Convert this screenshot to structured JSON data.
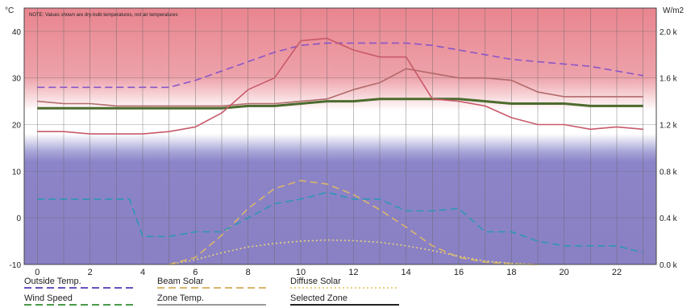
{
  "chart_data": {
    "type": "line",
    "note": "NOTE: Values shown are dry-bulb temperatures, not air temperatures",
    "left_axis": {
      "label": "°C",
      "min": -10,
      "max": 45,
      "ticks": [
        -10,
        0,
        10,
        20,
        30,
        40
      ]
    },
    "right_axis": {
      "label": "W/m2",
      "min": 0,
      "max": 2200,
      "ticks": [
        0,
        400,
        800,
        1200,
        1600,
        2000
      ],
      "tick_labels": [
        "0.0 k",
        "0.4 k",
        "0.8 k",
        "1.2 k",
        "1.6 k",
        "2.0 k"
      ]
    },
    "x_axis": {
      "min": -0.5,
      "max": 23.5,
      "ticks": [
        0,
        2,
        4,
        6,
        8,
        10,
        12,
        14,
        16,
        18,
        20,
        22
      ]
    },
    "grid": true,
    "background": "comfort-band gradient: red above ~27°C, white near 24°C, blue below ~16°C",
    "series": [
      {
        "name": "Outside Temp.",
        "axis": "left",
        "color": "#8a55c8",
        "style": "dashed",
        "x": [
          0,
          1,
          2,
          3,
          4,
          5,
          6,
          7,
          8,
          9,
          10,
          11,
          12,
          13,
          14,
          15,
          16,
          17,
          18,
          19,
          20,
          21,
          22,
          23
        ],
        "values": [
          28,
          28,
          28,
          28,
          28,
          28,
          29.5,
          31.5,
          33.5,
          35.5,
          37,
          37.5,
          37.5,
          37.5,
          37.5,
          37,
          36,
          35,
          34,
          33.5,
          33,
          32.5,
          31.5,
          30.5
        ]
      },
      {
        "name": "Beam Solar",
        "axis": "right",
        "color": "#d9b66a",
        "style": "dashed",
        "x": [
          5,
          6,
          7,
          8,
          9,
          10,
          11,
          12,
          13,
          14,
          15,
          16,
          17,
          18,
          19
        ],
        "values": [
          0,
          60,
          250,
          480,
          650,
          720,
          690,
          600,
          470,
          320,
          160,
          60,
          20,
          5,
          0
        ]
      },
      {
        "name": "Diffuse Solar",
        "axis": "right",
        "color": "#e6d27a",
        "style": "dotted",
        "x": [
          5,
          6,
          7,
          8,
          9,
          10,
          11,
          12,
          13,
          14,
          15,
          16,
          17,
          18,
          19
        ],
        "values": [
          0,
          40,
          100,
          150,
          180,
          200,
          210,
          205,
          190,
          160,
          120,
          70,
          30,
          10,
          0
        ]
      },
      {
        "name": "Wind Speed",
        "axis": "left",
        "color": "#2e96b8",
        "style": "dashed",
        "x": [
          0,
          1,
          2,
          3,
          3.5,
          4,
          5,
          6,
          7,
          8,
          9,
          10,
          11,
          12,
          13,
          14,
          15,
          16,
          17,
          18,
          19,
          20,
          21,
          22,
          23
        ],
        "values": [
          4,
          4,
          4,
          4,
          4,
          -4,
          -4,
          -3,
          -3,
          0,
          3,
          4,
          5.5,
          4,
          4,
          1.5,
          1.5,
          2,
          -3,
          -3,
          -5,
          -6,
          -6,
          -6,
          -7.5
        ]
      },
      {
        "name": "Zone Temp.",
        "axis": "left",
        "color": "#b36a6a",
        "style": "solid",
        "x": [
          0,
          1,
          2,
          3,
          4,
          5,
          6,
          7,
          8,
          9,
          10,
          11,
          12,
          13,
          14,
          15,
          16,
          17,
          18,
          19,
          20,
          21,
          22,
          23
        ],
        "values": [
          25,
          24.5,
          24.5,
          24,
          24,
          24,
          24,
          24,
          24.5,
          24.5,
          25,
          25.5,
          27.5,
          29,
          32,
          31,
          30,
          30,
          29.5,
          27,
          26,
          26,
          26,
          26
        ]
      },
      {
        "name": "Selected Zone",
        "axis": "left",
        "color": "#4d6b2e",
        "style": "solid",
        "x": [
          0,
          1,
          2,
          3,
          4,
          5,
          6,
          7,
          8,
          9,
          10,
          11,
          12,
          13,
          14,
          15,
          16,
          17,
          18,
          19,
          20,
          21,
          22,
          23
        ],
        "values": [
          23.5,
          23.5,
          23.5,
          23.5,
          23.5,
          23.5,
          23.5,
          23.5,
          24,
          24,
          24.5,
          25,
          25,
          25.5,
          25.5,
          25.5,
          25.5,
          25,
          24.5,
          24.5,
          24.5,
          24,
          24,
          24
        ]
      },
      {
        "name": "",
        "axis": "left",
        "color": "#c85a6a",
        "style": "solid",
        "x": [
          0,
          1,
          2,
          3,
          4,
          5,
          6,
          7,
          8,
          9,
          10,
          11,
          12,
          13,
          14,
          15,
          16,
          17,
          18,
          19,
          20,
          21,
          22,
          23
        ],
        "values": [
          18.5,
          18.5,
          18,
          18,
          18,
          18.5,
          19.5,
          22.5,
          27.5,
          30,
          38,
          38.5,
          36,
          34.5,
          34.5,
          25.5,
          25,
          24,
          21.5,
          20,
          20,
          19,
          19.5,
          19
        ]
      }
    ],
    "legend": {
      "placement": "bottom",
      "entries": [
        {
          "label": "Outside Temp.",
          "color": "#6a4fc0",
          "style": "dashed"
        },
        {
          "label": "Beam Solar",
          "color": "#d9b66a",
          "style": "dashed"
        },
        {
          "label": "Diffuse Solar",
          "color": "#e6d27a",
          "style": "dotted"
        },
        {
          "label": "Wind Speed",
          "color": "#4a9a4a",
          "style": "dashed"
        },
        {
          "label": "Zone Temp.",
          "color": "#999999",
          "style": "solid"
        },
        {
          "label": "Selected Zone",
          "color": "#222222",
          "style": "solid"
        }
      ]
    }
  }
}
